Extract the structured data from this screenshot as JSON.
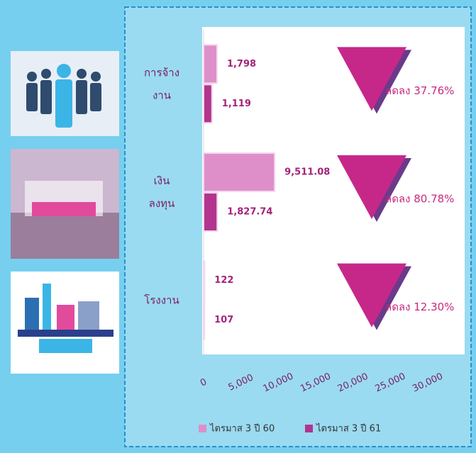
{
  "chart_data": {
    "type": "hbar",
    "categories": [
      [
        "การจ้าง",
        "งาน"
      ],
      [
        "เงิน",
        "ลงทุน"
      ],
      [
        "โรงงาน"
      ]
    ],
    "series": [
      {
        "name": "ไตรมาส 3 ปี 60",
        "color": "#de8fca",
        "values": [
          1798,
          9511.08,
          122
        ],
        "value_labels": [
          "1,798",
          "9,511.08",
          "122"
        ]
      },
      {
        "name": "ไตรมาส 3 ปี 61",
        "color": "#b3348e",
        "values": [
          1119,
          1827.74,
          107
        ],
        "value_labels": [
          "1,119",
          "1,827.74",
          "107"
        ]
      }
    ],
    "xlim": [
      0,
      30000
    ],
    "xticks": [
      0,
      {
        "value": 5000,
        "label": "5,000"
      },
      {
        "value": 10000,
        "label": "10,000"
      },
      {
        "value": 15000,
        "label": "15,000"
      },
      {
        "value": 20000,
        "label": "20,000"
      },
      {
        "value": 25000,
        "label": "25,000"
      },
      {
        "value": 30000,
        "label": "30,000"
      }
    ],
    "annotations": [
      "ลดลง 37.76%",
      "ลดลง 80.78%",
      "ลดลง 12.30%"
    ],
    "annotation_color": "#c8287f",
    "label_color": "#a3237a",
    "legend": "bottom"
  }
}
